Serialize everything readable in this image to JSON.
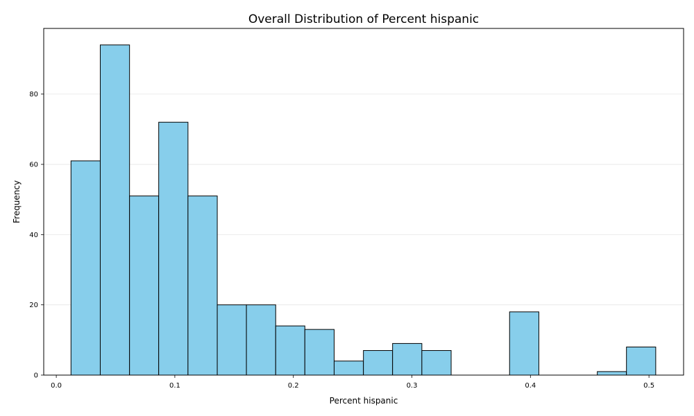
{
  "chart_data": {
    "type": "bar",
    "title": "Overall Distribution of Percent hispanic",
    "xlabel": "Percent hispanic",
    "ylabel": "Frequency",
    "xlim": [
      -0.0106,
      0.5292
    ],
    "ylim": [
      0,
      98.7
    ],
    "x_ticks": [
      0.0,
      0.1,
      0.2,
      0.3,
      0.4,
      0.5
    ],
    "x_tick_labels": [
      "0.0",
      "0.1",
      "0.2",
      "0.3",
      "0.4",
      "0.5"
    ],
    "y_ticks": [
      0,
      20,
      40,
      60,
      80
    ],
    "y_tick_labels": [
      "0",
      "20",
      "40",
      "60",
      "80"
    ],
    "grid": {
      "y": true,
      "x": false
    },
    "colors": {
      "bar_fill": "#87ceeb",
      "bar_edge": "#000000",
      "grid": "#e6e6e6"
    },
    "bins": [
      {
        "x0": 0.0124,
        "x1": 0.0371,
        "count": 61
      },
      {
        "x0": 0.0371,
        "x1": 0.0618,
        "count": 94
      },
      {
        "x0": 0.0618,
        "x1": 0.0864,
        "count": 51
      },
      {
        "x0": 0.0864,
        "x1": 0.1111,
        "count": 72
      },
      {
        "x0": 0.1111,
        "x1": 0.1358,
        "count": 51
      },
      {
        "x0": 0.1358,
        "x1": 0.1604,
        "count": 20
      },
      {
        "x0": 0.1604,
        "x1": 0.1851,
        "count": 20
      },
      {
        "x0": 0.1851,
        "x1": 0.2097,
        "count": 14
      },
      {
        "x0": 0.2097,
        "x1": 0.2344,
        "count": 13
      },
      {
        "x0": 0.2344,
        "x1": 0.2591,
        "count": 4
      },
      {
        "x0": 0.2591,
        "x1": 0.2837,
        "count": 7
      },
      {
        "x0": 0.2837,
        "x1": 0.3084,
        "count": 9
      },
      {
        "x0": 0.3084,
        "x1": 0.3331,
        "count": 7
      },
      {
        "x0": 0.3331,
        "x1": 0.3577,
        "count": 0
      },
      {
        "x0": 0.3577,
        "x1": 0.3824,
        "count": 0
      },
      {
        "x0": 0.3824,
        "x1": 0.4071,
        "count": 18
      },
      {
        "x0": 0.4071,
        "x1": 0.4317,
        "count": 0
      },
      {
        "x0": 0.4317,
        "x1": 0.4564,
        "count": 0
      },
      {
        "x0": 0.4564,
        "x1": 0.481,
        "count": 1
      },
      {
        "x0": 0.481,
        "x1": 0.5057,
        "count": 8
      }
    ]
  }
}
